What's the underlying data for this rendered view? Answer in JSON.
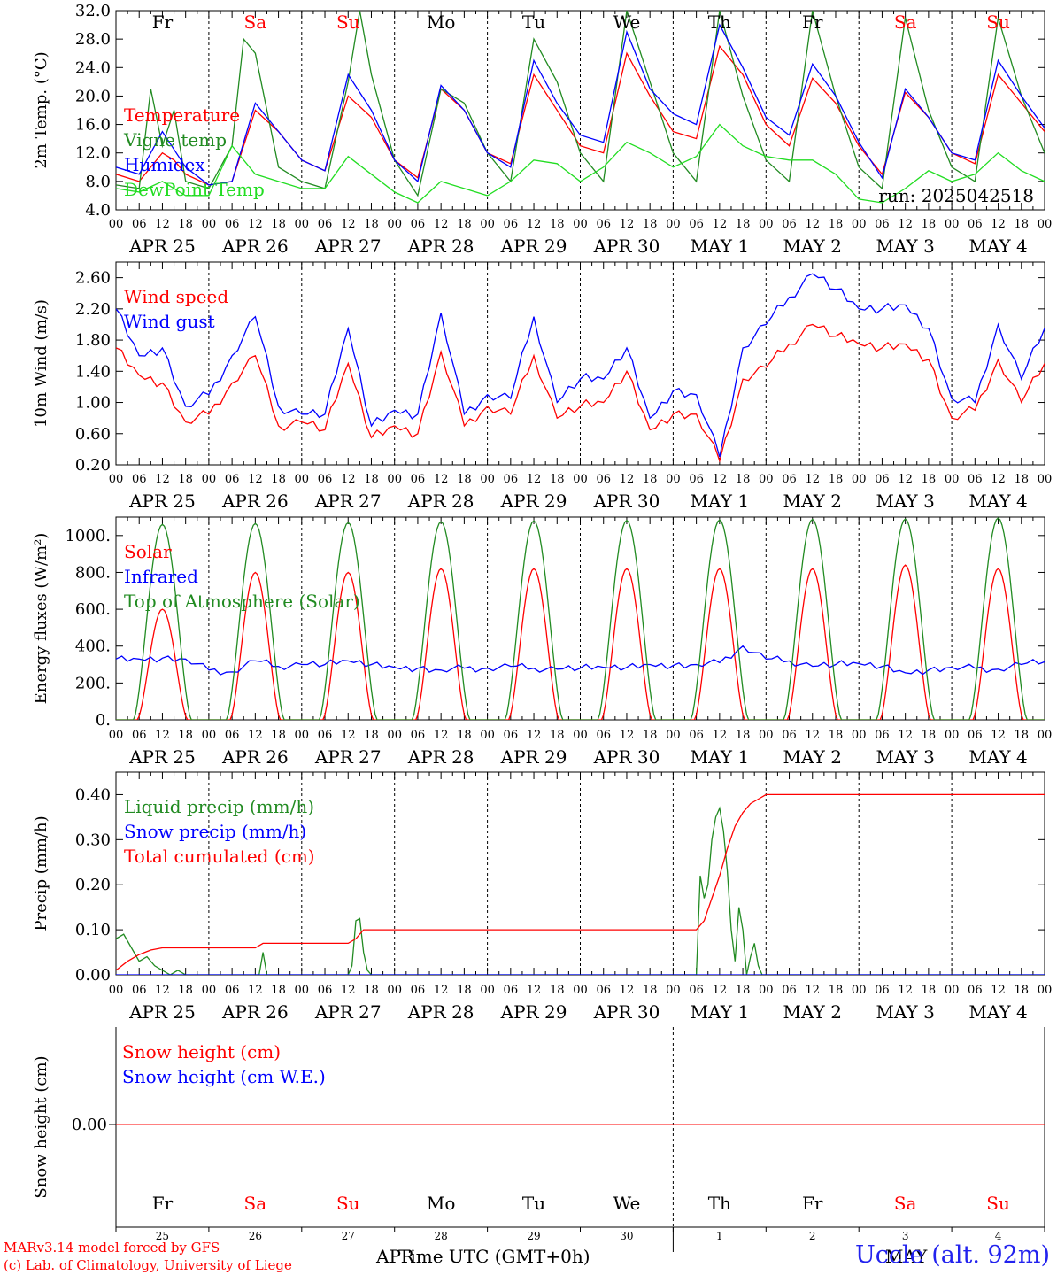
{
  "footer": {
    "model_line": "MARv3.14 model forced by GFS",
    "credit_line": "(c) Lab. of Climatology, University of Liege",
    "axis_title": "Time UTC (GMT+0h)",
    "month_left": "APR",
    "month_right": "MAY",
    "station": "Uccle (alt. 92m)"
  },
  "hour_ticks": [
    "00",
    "06",
    "12",
    "18"
  ],
  "date_labels": [
    "APR 25",
    "APR 26",
    "APR 27",
    "APR 28",
    "APR 29",
    "APR 30",
    "MAY  1",
    "MAY  2",
    "MAY  3",
    "MAY  4"
  ],
  "weekdays": [
    "Fr",
    "Sa",
    "Su",
    "Mo",
    "Tu",
    "We",
    "Th",
    "Fr",
    "Sa",
    "Su"
  ],
  "weekend_color": "#ff0000",
  "weekday_color": "#000000",
  "day_numbers": [
    "25",
    "26",
    "27",
    "28",
    "29",
    "30",
    "1",
    "2",
    "3",
    "4"
  ],
  "chart_data": [
    {
      "type": "line",
      "ylabel": "2m Temp. (°C)",
      "ylim": [
        4,
        32
      ],
      "yticks": [
        "4.0",
        "8.0",
        "12.0",
        "16.0",
        "20.0",
        "24.0",
        "28.0",
        "32.0"
      ],
      "annotation": "run: 2025042518",
      "x_unit": "hours since 2025-04-25 00 UTC",
      "series": [
        {
          "name": "Temperature",
          "color": "#ff0000",
          "x": [
            0,
            6,
            12,
            15,
            18,
            24,
            30,
            36,
            42,
            48,
            54,
            60,
            66,
            72,
            78,
            84,
            90,
            96,
            102,
            108,
            114,
            120,
            126,
            132,
            138,
            144,
            150,
            156,
            162,
            168,
            174,
            180,
            186,
            192,
            198,
            204,
            210,
            216,
            222,
            228,
            234,
            240
          ],
          "y": [
            9,
            8,
            12,
            11,
            9,
            7.5,
            8,
            18,
            15,
            11,
            9.5,
            20,
            17,
            11,
            8.5,
            21,
            18,
            12,
            10.5,
            23,
            18,
            13,
            12,
            26,
            20,
            15,
            14,
            27,
            23,
            16,
            13,
            22.5,
            19,
            13,
            9,
            20.5,
            17,
            12,
            10.5,
            23,
            19,
            15
          ]
        },
        {
          "name": "Vigne temp",
          "color": "#228b22",
          "x": [
            0,
            6,
            9,
            12,
            15,
            18,
            24,
            30,
            33,
            36,
            42,
            48,
            54,
            60,
            63,
            66,
            72,
            78,
            84,
            90,
            96,
            102,
            108,
            114,
            120,
            126,
            132,
            138,
            144,
            150,
            156,
            162,
            168,
            174,
            180,
            186,
            192,
            198,
            204,
            210,
            216,
            222,
            228,
            234,
            240
          ],
          "y": [
            7.5,
            7,
            21,
            13,
            18,
            8,
            7,
            13,
            28,
            26,
            10,
            8,
            7,
            22,
            32,
            23,
            11,
            6,
            21,
            19,
            12,
            8,
            28,
            22,
            12,
            8,
            32,
            22,
            12,
            8,
            32,
            20,
            11,
            8,
            32,
            20,
            10,
            7,
            31,
            18,
            10,
            8,
            31,
            20,
            12
          ]
        },
        {
          "name": "Humidex",
          "color": "#0000ff",
          "x": [
            0,
            6,
            12,
            18,
            24,
            30,
            36,
            42,
            48,
            54,
            60,
            66,
            72,
            78,
            84,
            90,
            96,
            102,
            108,
            114,
            120,
            126,
            132,
            138,
            144,
            150,
            156,
            162,
            168,
            174,
            180,
            186,
            192,
            198,
            204,
            210,
            216,
            222,
            228,
            234,
            240
          ],
          "y": [
            10,
            9,
            15,
            10,
            7.5,
            8,
            19,
            15,
            11,
            9.5,
            23,
            18,
            11,
            8,
            21.5,
            18,
            12,
            10,
            25,
            19,
            14.5,
            13.5,
            29,
            21,
            17.5,
            16,
            30,
            24,
            17,
            14.5,
            24.5,
            20,
            13.5,
            8.5,
            21,
            17,
            12,
            11,
            25,
            20,
            15.5
          ]
        },
        {
          "name": "DewPoint Temp",
          "color": "#22dd22",
          "x": [
            0,
            6,
            12,
            18,
            24,
            30,
            36,
            42,
            48,
            54,
            60,
            66,
            72,
            78,
            84,
            90,
            96,
            102,
            108,
            114,
            120,
            126,
            132,
            138,
            144,
            150,
            156,
            162,
            168,
            174,
            180,
            186,
            192,
            198,
            204,
            210,
            216,
            222,
            228,
            234,
            240
          ],
          "y": [
            7,
            6.5,
            8,
            6,
            6,
            13,
            9,
            8,
            7,
            7,
            11.5,
            9,
            6.5,
            5,
            8,
            7,
            6,
            8,
            11,
            10.5,
            8,
            10,
            13.5,
            12,
            10,
            11.5,
            16,
            13,
            11.5,
            11,
            11,
            9,
            5.5,
            5,
            7,
            9.5,
            8,
            9,
            12,
            9.5,
            8
          ]
        }
      ]
    },
    {
      "type": "line",
      "ylabel": "10m Wind (m/s)",
      "ylim": [
        0.2,
        2.8
      ],
      "yticks": [
        "0.20",
        "0.60",
        "1.00",
        "1.40",
        "1.80",
        "2.20",
        "2.60"
      ],
      "x_unit": "hours since 2025-04-25 00 UTC",
      "series": [
        {
          "name": "Wind speed",
          "color": "#ff0000",
          "x": [
            0,
            6,
            12,
            18,
            24,
            30,
            36,
            42,
            48,
            54,
            60,
            66,
            72,
            78,
            84,
            90,
            96,
            102,
            108,
            114,
            120,
            126,
            132,
            138,
            144,
            150,
            156,
            162,
            168,
            174,
            180,
            186,
            192,
            198,
            204,
            210,
            216,
            222,
            228,
            234,
            240
          ],
          "y": [
            1.7,
            1.35,
            1.25,
            0.75,
            0.85,
            1.25,
            1.6,
            0.7,
            0.75,
            0.65,
            1.5,
            0.55,
            0.7,
            0.6,
            1.65,
            0.7,
            0.95,
            0.85,
            1.6,
            0.8,
            0.95,
            1.0,
            1.4,
            0.65,
            0.85,
            0.85,
            0.25,
            1.3,
            1.45,
            1.75,
            2.0,
            1.85,
            1.75,
            1.7,
            1.75,
            1.55,
            0.8,
            0.9,
            1.55,
            1.0,
            1.5
          ]
        },
        {
          "name": "Wind gust",
          "color": "#0000ff",
          "x": [
            0,
            6,
            12,
            18,
            24,
            30,
            36,
            42,
            48,
            54,
            60,
            66,
            72,
            78,
            84,
            90,
            96,
            102,
            108,
            114,
            120,
            126,
            132,
            138,
            144,
            150,
            156,
            162,
            168,
            174,
            180,
            186,
            192,
            198,
            204,
            210,
            216,
            222,
            228,
            234,
            240
          ],
          "y": [
            2.2,
            1.6,
            1.7,
            0.95,
            1.1,
            1.6,
            2.1,
            0.95,
            0.85,
            0.85,
            1.95,
            0.7,
            0.9,
            0.85,
            2.15,
            0.85,
            1.1,
            1.05,
            2.1,
            1.0,
            1.3,
            1.3,
            1.7,
            0.8,
            1.15,
            1.1,
            0.3,
            1.7,
            2.0,
            2.35,
            2.65,
            2.45,
            2.2,
            2.2,
            2.25,
            1.95,
            1.05,
            1.0,
            2.0,
            1.3,
            1.95
          ]
        }
      ]
    },
    {
      "type": "line",
      "ylabel": "Energy fluxes (W/m²)",
      "ylim": [
        0,
        1100
      ],
      "yticks": [
        "0.",
        "200.",
        "400.",
        "600.",
        "800.",
        "1000."
      ],
      "x_unit": "hours since 2025-04-25 00 UTC",
      "series": [
        {
          "name": "Solar",
          "color": "#ff0000",
          "daily_peak": [
            600,
            800,
            800,
            820,
            820,
            820,
            820,
            820,
            840,
            820
          ]
        },
        {
          "name": "Infrared",
          "color": "#0000ff",
          "x": [
            0,
            6,
            12,
            18,
            24,
            30,
            36,
            42,
            48,
            54,
            60,
            66,
            72,
            78,
            84,
            90,
            96,
            102,
            108,
            114,
            120,
            126,
            132,
            138,
            144,
            150,
            156,
            162,
            168,
            174,
            180,
            186,
            192,
            198,
            204,
            210,
            216,
            222,
            228,
            234,
            240
          ],
          "y": [
            330,
            330,
            335,
            330,
            270,
            260,
            320,
            290,
            300,
            300,
            320,
            300,
            285,
            280,
            270,
            280,
            280,
            290,
            280,
            275,
            280,
            285,
            285,
            300,
            295,
            300,
            310,
            400,
            330,
            320,
            290,
            300,
            305,
            290,
            255,
            270,
            285,
            280,
            275,
            300,
            315
          ]
        },
        {
          "name": "Top of Atmosphere (Solar)",
          "color": "#228b22",
          "daily_peak": [
            1060,
            1065,
            1070,
            1075,
            1080,
            1082,
            1085,
            1088,
            1090,
            1095
          ]
        }
      ]
    },
    {
      "type": "line",
      "ylabel": "Precip (mm/h)",
      "ylim": [
        0,
        0.45
      ],
      "yticks": [
        "0.00",
        "0.10",
        "0.20",
        "0.30",
        "0.40"
      ],
      "x_unit": "hours since 2025-04-25 00 UTC",
      "series": [
        {
          "name": "Liquid precip (mm/h)",
          "color": "#228b22",
          "x": [
            0,
            2,
            4,
            6,
            8,
            10,
            12,
            14,
            16,
            18,
            24,
            30,
            36,
            37,
            38,
            39,
            40,
            42,
            48,
            54,
            60,
            61,
            62,
            63,
            64,
            65,
            66,
            67,
            68,
            72,
            96,
            120,
            144,
            150,
            151,
            152,
            153,
            154,
            155,
            156,
            157,
            158,
            159,
            160,
            161,
            162,
            163,
            164,
            165,
            166,
            167,
            168,
            170,
            240
          ],
          "y": [
            0.08,
            0.09,
            0.06,
            0.03,
            0.04,
            0.02,
            0.01,
            0.0,
            0.01,
            0.0,
            0.0,
            0.0,
            0.0,
            0.0,
            0.05,
            0.0,
            0.0,
            0.0,
            0.0,
            0.0,
            0.0,
            0.02,
            0.12,
            0.125,
            0.05,
            0.01,
            0.0,
            0.0,
            0.0,
            0.0,
            0.0,
            0.0,
            0.0,
            0.0,
            0.22,
            0.17,
            0.2,
            0.3,
            0.35,
            0.37,
            0.32,
            0.23,
            0.1,
            0.03,
            0.15,
            0.1,
            0.0,
            0.04,
            0.07,
            0.02,
            0.0,
            0.0,
            0.0,
            0.0
          ]
        },
        {
          "name": "Snow precip (mm/h)",
          "color": "#0000ff",
          "x": [
            0,
            240
          ],
          "y": [
            0,
            0
          ]
        },
        {
          "name": "Total cumulated (cm)",
          "color": "#ff0000",
          "x": [
            0,
            3,
            6,
            9,
            12,
            24,
            36,
            38,
            60,
            62,
            64,
            66,
            150,
            152,
            154,
            156,
            158,
            160,
            162,
            164,
            166,
            168,
            240
          ],
          "y": [
            0.01,
            0.03,
            0.045,
            0.055,
            0.06,
            0.06,
            0.06,
            0.07,
            0.07,
            0.08,
            0.1,
            0.1,
            0.1,
            0.12,
            0.17,
            0.22,
            0.28,
            0.33,
            0.36,
            0.38,
            0.39,
            0.4,
            0.4
          ]
        }
      ]
    },
    {
      "type": "line",
      "ylabel": "Snow height (cm)",
      "yticks": [
        "0.00"
      ],
      "x_unit": "hours since 2025-04-25 00 UTC",
      "series": [
        {
          "name": "Snow height (cm)",
          "color": "#ff0000",
          "x": [
            0,
            240
          ],
          "y": [
            0,
            0
          ]
        },
        {
          "name": "Snow height (cm W.E.)",
          "color": "#0000ff",
          "x": [
            0,
            240
          ],
          "y": [
            0,
            0
          ]
        }
      ]
    }
  ]
}
